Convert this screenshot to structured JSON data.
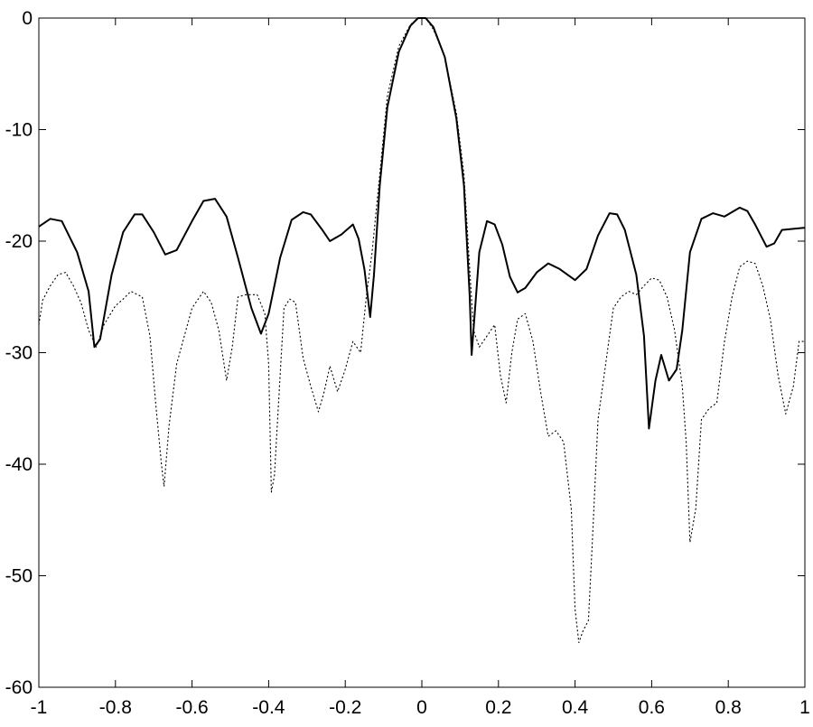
{
  "chart_data": {
    "type": "line",
    "title": "",
    "xlabel": "",
    "ylabel": "",
    "xlim": [
      -1,
      1
    ],
    "ylim": [
      -60,
      0
    ],
    "x_ticks": [
      "-1",
      "-0.8",
      "-0.6",
      "-0.4",
      "-0.2",
      "0",
      "0.2",
      "0.4",
      "0.6",
      "0.8",
      "1"
    ],
    "y_ticks": [
      "0",
      "-10",
      "-20",
      "-30",
      "-40",
      "-50",
      "-60"
    ],
    "grid": false,
    "legend": "none",
    "series": [
      {
        "style": "solid",
        "color": "#000000",
        "points": [
          [
            -1,
            -18.7
          ],
          [
            -0.97,
            -18.0
          ],
          [
            -0.94,
            -18.2
          ],
          [
            -0.9,
            -21
          ],
          [
            -0.87,
            -24.5
          ],
          [
            -0.855,
            -29.5
          ],
          [
            -0.84,
            -28.8
          ],
          [
            -0.81,
            -23
          ],
          [
            -0.78,
            -19.2
          ],
          [
            -0.75,
            -17.6
          ],
          [
            -0.73,
            -17.6
          ],
          [
            -0.7,
            -19.2
          ],
          [
            -0.67,
            -21.2
          ],
          [
            -0.64,
            -20.8
          ],
          [
            -0.6,
            -18.2
          ],
          [
            -0.57,
            -16.4
          ],
          [
            -0.54,
            -16.2
          ],
          [
            -0.51,
            -17.8
          ],
          [
            -0.48,
            -21.5
          ],
          [
            -0.445,
            -26
          ],
          [
            -0.42,
            -28.3
          ],
          [
            -0.4,
            -26.5
          ],
          [
            -0.37,
            -21.5
          ],
          [
            -0.34,
            -18.1
          ],
          [
            -0.31,
            -17.4
          ],
          [
            -0.29,
            -17.6
          ],
          [
            -0.26,
            -19
          ],
          [
            -0.24,
            -20
          ],
          [
            -0.21,
            -19.4
          ],
          [
            -0.18,
            -18.5
          ],
          [
            -0.165,
            -19.8
          ],
          [
            -0.15,
            -22.5
          ],
          [
            -0.135,
            -26.8
          ],
          [
            -0.125,
            -23
          ],
          [
            -0.11,
            -15
          ],
          [
            -0.09,
            -8
          ],
          [
            -0.06,
            -3
          ],
          [
            -0.03,
            -0.7
          ],
          [
            -0.01,
            0
          ],
          [
            0.01,
            0
          ],
          [
            0.03,
            -0.8
          ],
          [
            0.06,
            -3.5
          ],
          [
            0.09,
            -9
          ],
          [
            0.11,
            -15
          ],
          [
            0.125,
            -25
          ],
          [
            0.13,
            -30.2
          ],
          [
            0.15,
            -21
          ],
          [
            0.17,
            -18.2
          ],
          [
            0.19,
            -18.5
          ],
          [
            0.21,
            -20.3
          ],
          [
            0.23,
            -23.2
          ],
          [
            0.25,
            -24.6
          ],
          [
            0.27,
            -24.2
          ],
          [
            0.3,
            -22.8
          ],
          [
            0.33,
            -22
          ],
          [
            0.36,
            -22.5
          ],
          [
            0.4,
            -23.5
          ],
          [
            0.43,
            -22.5
          ],
          [
            0.46,
            -19.5
          ],
          [
            0.49,
            -17.5
          ],
          [
            0.51,
            -17.6
          ],
          [
            0.53,
            -19
          ],
          [
            0.56,
            -23
          ],
          [
            0.58,
            -28.5
          ],
          [
            0.593,
            -36.8
          ],
          [
            0.61,
            -32.5
          ],
          [
            0.625,
            -30.2
          ],
          [
            0.645,
            -32.5
          ],
          [
            0.665,
            -31.5
          ],
          [
            0.68,
            -28
          ],
          [
            0.7,
            -21
          ],
          [
            0.73,
            -18
          ],
          [
            0.76,
            -17.5
          ],
          [
            0.79,
            -17.8
          ],
          [
            0.83,
            -17
          ],
          [
            0.85,
            -17.3
          ],
          [
            0.87,
            -18.5
          ],
          [
            0.9,
            -20.5
          ],
          [
            0.92,
            -20.2
          ],
          [
            0.94,
            -19
          ],
          [
            0.97,
            -18.9
          ],
          [
            1,
            -18.8
          ]
        ]
      },
      {
        "style": "dotted",
        "color": "#000000",
        "points": [
          [
            -1,
            -27.5
          ],
          [
            -0.99,
            -25.3
          ],
          [
            -0.97,
            -24
          ],
          [
            -0.95,
            -23
          ],
          [
            -0.93,
            -22.8
          ],
          [
            -0.91,
            -24
          ],
          [
            -0.89,
            -25.5
          ],
          [
            -0.87,
            -28
          ],
          [
            -0.85,
            -29.5
          ],
          [
            -0.83,
            -27.5
          ],
          [
            -0.8,
            -25.8
          ],
          [
            -0.78,
            -25.2
          ],
          [
            -0.76,
            -24.5
          ],
          [
            -0.73,
            -25
          ],
          [
            -0.71,
            -28.5
          ],
          [
            -0.695,
            -34.5
          ],
          [
            -0.68,
            -40
          ],
          [
            -0.673,
            -42
          ],
          [
            -0.66,
            -36.5
          ],
          [
            -0.64,
            -31
          ],
          [
            -0.62,
            -28.5
          ],
          [
            -0.6,
            -26
          ],
          [
            -0.57,
            -24.5
          ],
          [
            -0.55,
            -25.5
          ],
          [
            -0.53,
            -28
          ],
          [
            -0.51,
            -32.5
          ],
          [
            -0.495,
            -29.5
          ],
          [
            -0.48,
            -25
          ],
          [
            -0.46,
            -24.8
          ],
          [
            -0.43,
            -24.8
          ],
          [
            -0.41,
            -26.5
          ],
          [
            -0.4,
            -31
          ],
          [
            -0.393,
            -42.5
          ],
          [
            -0.385,
            -41
          ],
          [
            -0.375,
            -35
          ],
          [
            -0.36,
            -26
          ],
          [
            -0.345,
            -25.2
          ],
          [
            -0.33,
            -25.5
          ],
          [
            -0.31,
            -30.5
          ],
          [
            -0.29,
            -33
          ],
          [
            -0.27,
            -35.3
          ],
          [
            -0.255,
            -33.5
          ],
          [
            -0.24,
            -31.2
          ],
          [
            -0.22,
            -33.5
          ],
          [
            -0.2,
            -31.5
          ],
          [
            -0.18,
            -29
          ],
          [
            -0.16,
            -30
          ],
          [
            -0.145,
            -25
          ],
          [
            -0.13,
            -21
          ],
          [
            -0.11,
            -14
          ],
          [
            -0.09,
            -7
          ],
          [
            -0.06,
            -2.5
          ],
          [
            -0.03,
            -0.6
          ],
          [
            -0.01,
            0
          ],
          [
            0.01,
            0
          ],
          [
            0.03,
            -1
          ],
          [
            0.06,
            -3.5
          ],
          [
            0.09,
            -8.5
          ],
          [
            0.11,
            -14
          ],
          [
            0.125,
            -22.5
          ],
          [
            0.135,
            -28
          ],
          [
            0.15,
            -29.5
          ],
          [
            0.17,
            -28.5
          ],
          [
            0.19,
            -27.5
          ],
          [
            0.205,
            -32
          ],
          [
            0.22,
            -34.5
          ],
          [
            0.235,
            -30
          ],
          [
            0.25,
            -27
          ],
          [
            0.27,
            -26.5
          ],
          [
            0.29,
            -29
          ],
          [
            0.31,
            -33.5
          ],
          [
            0.33,
            -37.5
          ],
          [
            0.35,
            -37
          ],
          [
            0.37,
            -38
          ],
          [
            0.39,
            -44
          ],
          [
            0.4,
            -53
          ],
          [
            0.41,
            -56
          ],
          [
            0.42,
            -55
          ],
          [
            0.435,
            -54
          ],
          [
            0.445,
            -47
          ],
          [
            0.46,
            -36
          ],
          [
            0.48,
            -31
          ],
          [
            0.5,
            -26
          ],
          [
            0.52,
            -25
          ],
          [
            0.54,
            -24.5
          ],
          [
            0.56,
            -24.8
          ],
          [
            0.58,
            -24
          ],
          [
            0.6,
            -23.3
          ],
          [
            0.62,
            -23.5
          ],
          [
            0.64,
            -25
          ],
          [
            0.66,
            -28
          ],
          [
            0.68,
            -33
          ],
          [
            0.69,
            -38
          ],
          [
            0.7,
            -47
          ],
          [
            0.715,
            -44
          ],
          [
            0.73,
            -36
          ],
          [
            0.75,
            -35
          ],
          [
            0.77,
            -34.5
          ],
          [
            0.79,
            -29
          ],
          [
            0.81,
            -25
          ],
          [
            0.83,
            -22.3
          ],
          [
            0.85,
            -21.8
          ],
          [
            0.87,
            -22
          ],
          [
            0.89,
            -24
          ],
          [
            0.91,
            -27
          ],
          [
            0.93,
            -32
          ],
          [
            0.95,
            -35.5
          ],
          [
            0.97,
            -33
          ],
          [
            0.985,
            -29
          ],
          [
            1,
            -29
          ]
        ]
      }
    ]
  }
}
